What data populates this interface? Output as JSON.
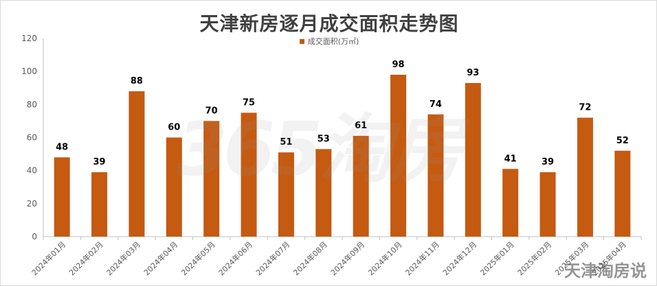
{
  "chart_data": {
    "type": "bar",
    "title": "天津新房逐月成交面积走势图",
    "series": [
      {
        "name": "成交面积(万㎡)",
        "values": [
          48,
          39,
          88,
          60,
          70,
          75,
          51,
          53,
          61,
          98,
          74,
          93,
          41,
          39,
          72,
          52
        ]
      }
    ],
    "categories": [
      "2024年01月",
      "2024年02月",
      "2024年03月",
      "2024年04月",
      "2024年05月",
      "2024年06月",
      "2024年07月",
      "2024年08月",
      "2024年09月",
      "2024年10月",
      "2024年11月",
      "2024年12月",
      "2025年01月",
      "2025年02月",
      "2025年03月",
      "2025年04月"
    ],
    "y_ticks": [
      "0",
      "20",
      "40",
      "60",
      "80",
      "100",
      "120"
    ],
    "ylim": [
      0,
      120
    ],
    "grid": false,
    "legend_position": "top",
    "bar_color": "#C55A11",
    "xlabel": "",
    "ylabel": ""
  },
  "watermarks": {
    "center_text": "365淘房",
    "corner_text": "天津淘房说"
  }
}
